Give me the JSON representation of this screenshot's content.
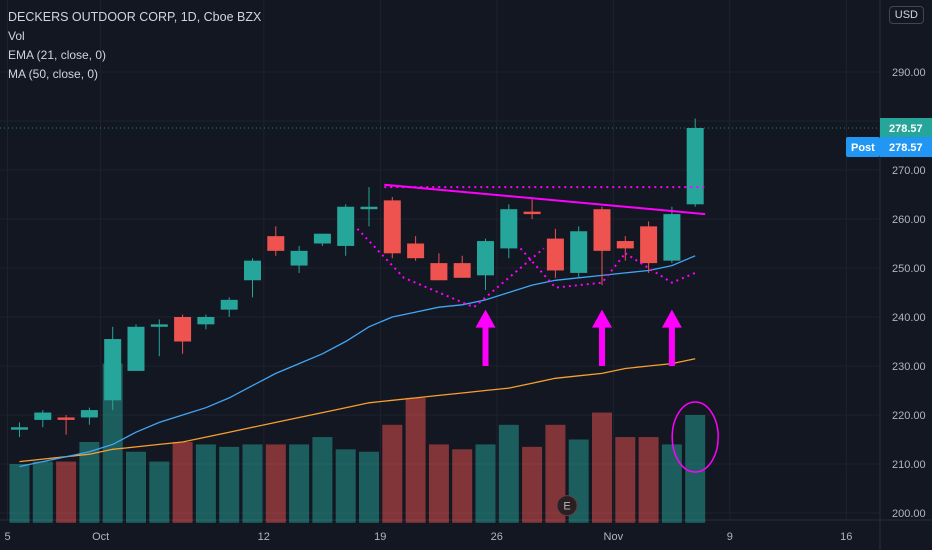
{
  "legend": {
    "title": "DECKERS OUTDOOR CORP, 1D, Cboe BZX",
    "vol": "Vol",
    "ema": "EMA (21, close, 0)",
    "ma": "MA (50, close, 0)"
  },
  "currency": "USD",
  "price_labels": {
    "last": "278.57",
    "post_label": "Post",
    "post_value": "278.57"
  },
  "earnings_label": "E",
  "colors": {
    "up": "#26a69a",
    "down": "#ef5350",
    "ema": "#2962ff",
    "ema_line": "#42a5f5",
    "ma": "#f7a02d",
    "annotation": "#ff00ff",
    "grid": "#1e222d",
    "post": "#2196f3"
  },
  "chart_data": {
    "type": "candlestick",
    "y_axis": {
      "ticks": [
        200,
        210,
        220,
        230,
        240,
        250,
        260,
        270,
        280,
        290
      ],
      "tick_labels": [
        "200.00",
        "210.00",
        "220.00",
        "230.00",
        "240.00",
        "250.00",
        "260.00",
        "270.00",
        "",
        "290.00"
      ],
      "range": [
        198,
        302
      ]
    },
    "x_axis": {
      "tick_labels": [
        "5",
        "Oct",
        "12",
        "19",
        "26",
        "Nov",
        "9",
        "16"
      ],
      "tick_index": [
        0,
        4,
        11,
        16,
        21,
        26,
        31,
        36
      ]
    },
    "candles": [
      {
        "o": 217.0,
        "h": 218.5,
        "l": 215.5,
        "c": 217.5
      },
      {
        "o": 219.0,
        "h": 221.0,
        "l": 217.5,
        "c": 220.5
      },
      {
        "o": 219.5,
        "h": 220.0,
        "l": 216.0,
        "c": 219.0
      },
      {
        "o": 219.5,
        "h": 221.5,
        "l": 218.0,
        "c": 221.0
      },
      {
        "o": 223.0,
        "h": 238.0,
        "l": 221.0,
        "c": 235.5
      },
      {
        "o": 229.0,
        "h": 238.5,
        "l": 229.0,
        "c": 238.0
      },
      {
        "o": 238.0,
        "h": 239.5,
        "l": 232.0,
        "c": 238.5
      },
      {
        "o": 240.0,
        "h": 240.5,
        "l": 232.5,
        "c": 235.0
      },
      {
        "o": 238.5,
        "h": 240.5,
        "l": 237.5,
        "c": 240.0
      },
      {
        "o": 241.5,
        "h": 244.0,
        "l": 240.0,
        "c": 243.5
      },
      {
        "o": 247.5,
        "h": 252.0,
        "l": 244.0,
        "c": 251.5
      },
      {
        "o": 256.5,
        "h": 258.5,
        "l": 252.5,
        "c": 253.5
      },
      {
        "o": 250.5,
        "h": 254.5,
        "l": 249.0,
        "c": 253.5
      },
      {
        "o": 255.0,
        "h": 257.0,
        "l": 254.5,
        "c": 257.0
      },
      {
        "o": 254.5,
        "h": 263.0,
        "l": 252.5,
        "c": 262.5
      },
      {
        "o": 262.0,
        "h": 266.5,
        "l": 258.5,
        "c": 262.5
      },
      {
        "o": 263.8,
        "h": 264.5,
        "l": 252.0,
        "c": 253.0
      },
      {
        "o": 255.0,
        "h": 256.5,
        "l": 251.5,
        "c": 252.0
      },
      {
        "o": 251.0,
        "h": 253.0,
        "l": 247.5,
        "c": 247.5
      },
      {
        "o": 251.0,
        "h": 252.5,
        "l": 248.5,
        "c": 248.0
      },
      {
        "o": 248.5,
        "h": 256.0,
        "l": 245.5,
        "c": 255.5
      },
      {
        "o": 254.0,
        "h": 263.0,
        "l": 252.0,
        "c": 262.0
      },
      {
        "o": 261.5,
        "h": 264.0,
        "l": 260.0,
        "c": 261.0
      },
      {
        "o": 256.0,
        "h": 258.0,
        "l": 248.0,
        "c": 249.5
      },
      {
        "o": 249.0,
        "h": 258.5,
        "l": 248.0,
        "c": 257.5
      },
      {
        "o": 262.0,
        "h": 262.5,
        "l": 246.5,
        "c": 253.5
      },
      {
        "o": 255.5,
        "h": 256.5,
        "l": 251.5,
        "c": 254.0
      },
      {
        "o": 258.5,
        "h": 259.5,
        "l": 249.0,
        "c": 251.0
      },
      {
        "o": 251.5,
        "h": 262.5,
        "l": 251.0,
        "c": 261.0
      },
      {
        "o": 263.0,
        "h": 280.5,
        "l": 262.5,
        "c": 278.57
      }
    ],
    "volume": [
      210,
      210.5,
      210.5,
      214.5,
      230.5,
      212.5,
      210.5,
      214.5,
      214,
      213.5,
      214,
      214,
      214,
      215.5,
      213,
      212.5,
      218,
      223.5,
      214,
      213,
      214,
      218,
      213.5,
      218,
      215,
      220.5,
      215.5,
      215.5,
      214,
      220
    ],
    "ema21": [
      209.5,
      210.5,
      211.5,
      212.5,
      214.0,
      216.5,
      218.5,
      220.0,
      221.5,
      223.5,
      226.0,
      228.5,
      230.5,
      232.5,
      235.0,
      238.0,
      240.0,
      241.0,
      242.0,
      242.5,
      243.5,
      245.0,
      246.5,
      247.5,
      248.0,
      248.5,
      249.0,
      249.5,
      250.5,
      252.5
    ],
    "ma50": [
      210.5,
      211.0,
      211.5,
      212.0,
      213.0,
      213.5,
      214.0,
      214.5,
      215.5,
      216.5,
      217.5,
      218.5,
      219.5,
      220.5,
      221.5,
      222.5,
      223.0,
      223.5,
      224.0,
      224.5,
      225.0,
      225.5,
      226.5,
      227.5,
      228.0,
      228.5,
      229.5,
      230.0,
      230.5,
      231.5
    ],
    "annotations": {
      "neckline_dotted": 266.5,
      "trendline": [
        [
          16,
          267.0
        ],
        [
          29,
          261.0
        ]
      ],
      "arrows": [
        20,
        25,
        28
      ]
    }
  }
}
